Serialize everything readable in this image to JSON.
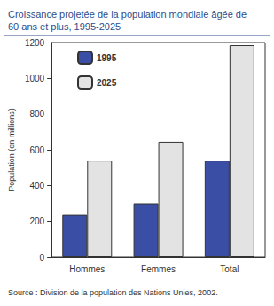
{
  "chart_data": {
    "type": "bar",
    "title": "Croissance projetée de la population mondiale âgée de\n60 ans et plus, 1995-2025",
    "source": "Source : Division de la population des Nations Unies, 2002.",
    "y_label": "Population (en millions)",
    "categories": [
      "Hommes",
      "Femmes",
      "Total"
    ],
    "series": [
      {
        "name": "1995",
        "color": "#3b4ea6",
        "values": [
          240,
          300,
          540
        ]
      },
      {
        "name": "2025",
        "color": "#e3e3e3",
        "values": [
          540,
          645,
          1185
        ]
      }
    ],
    "ylim": [
      0,
      1200
    ],
    "yticks": [
      0,
      200,
      400,
      600,
      800,
      1000,
      1200
    ],
    "grid": false,
    "legend": "upper left"
  }
}
